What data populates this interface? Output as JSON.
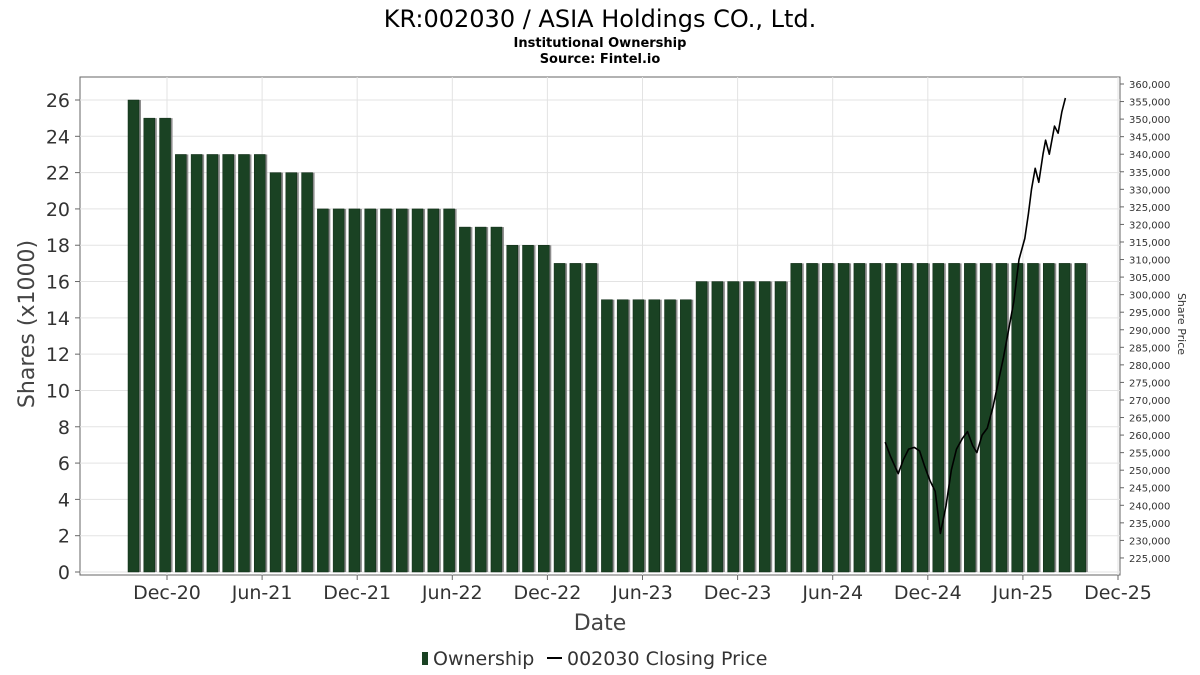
{
  "chart_data": {
    "type": "bar",
    "title": "KR:002030 / ASIA Holdings CO., Ltd.",
    "subtitle": "Institutional Ownership",
    "source": "Source: Fintel.io",
    "xlabel": "Date",
    "ylabel": "Shares (x1000)",
    "ylabel_right": "Share Price",
    "ylim": [
      0,
      26
    ],
    "ylim_right": [
      221000,
      360000
    ],
    "grid": true,
    "legend_position": "bottom",
    "x_ticks": [
      "Dec-20",
      "Jun-21",
      "Dec-21",
      "Jun-22",
      "Dec-22",
      "Jun-23",
      "Dec-23",
      "Jun-24",
      "Dec-24",
      "Jun-25",
      "Dec-25"
    ],
    "y_ticks": [
      0,
      2,
      4,
      6,
      8,
      10,
      12,
      14,
      16,
      18,
      20,
      22,
      24,
      26
    ],
    "y_ticks_right": [
      "225,000",
      "230,000",
      "235,000",
      "240,000",
      "245,000",
      "250,000",
      "255,000",
      "260,000",
      "265,000",
      "270,000",
      "275,000",
      "280,000",
      "285,000",
      "290,000",
      "295,000",
      "300,000",
      "305,000",
      "310,000",
      "315,000",
      "320,000",
      "325,000",
      "330,000",
      "335,000",
      "340,000",
      "345,000",
      "350,000",
      "355,000",
      "360,000"
    ],
    "series": [
      {
        "name": "Ownership",
        "color": "#1a4223",
        "values": [
          26,
          25,
          25,
          23,
          23,
          23,
          23,
          23,
          23,
          22,
          22,
          22,
          20,
          20,
          20,
          20,
          20,
          20,
          20,
          20,
          20,
          19,
          19,
          19,
          18,
          18,
          18,
          17,
          17,
          17,
          15,
          15,
          15,
          15,
          15,
          15,
          16,
          16,
          16,
          16,
          16,
          16,
          17,
          17,
          17,
          17,
          17,
          17,
          17,
          17,
          17,
          17,
          17,
          17,
          17,
          17,
          17,
          17,
          17,
          17,
          17
        ]
      },
      {
        "name": "002030 Closing Price",
        "color": "#000000",
        "dates": [
          "2024-09-10",
          "2024-09-20",
          "2024-10-05",
          "2024-10-15",
          "2024-10-25",
          "2024-11-05",
          "2024-11-15",
          "2024-11-25",
          "2024-12-05",
          "2024-12-15",
          "2024-12-25",
          "2025-01-05",
          "2025-01-15",
          "2025-01-25",
          "2025-02-05",
          "2025-02-15",
          "2025-02-25",
          "2025-03-05",
          "2025-03-15",
          "2025-03-25",
          "2025-04-05",
          "2025-04-15",
          "2025-04-25",
          "2025-05-05",
          "2025-05-15",
          "2025-05-25",
          "2025-06-05",
          "2025-06-12",
          "2025-06-18",
          "2025-06-25",
          "2025-07-02",
          "2025-07-10",
          "2025-07-15",
          "2025-07-22",
          "2025-08-01",
          "2025-08-08",
          "2025-08-15",
          "2025-08-22"
        ],
        "values": [
          258000,
          254000,
          249000,
          253000,
          256000,
          256500,
          255500,
          251000,
          247000,
          244000,
          232000,
          240000,
          250000,
          256000,
          259000,
          261000,
          257000,
          255000,
          260000,
          262000,
          268000,
          275000,
          282000,
          290000,
          298000,
          310000,
          316000,
          323000,
          330000,
          336000,
          332000,
          340000,
          344000,
          340000,
          348000,
          346000,
          352000,
          356000
        ]
      }
    ]
  }
}
